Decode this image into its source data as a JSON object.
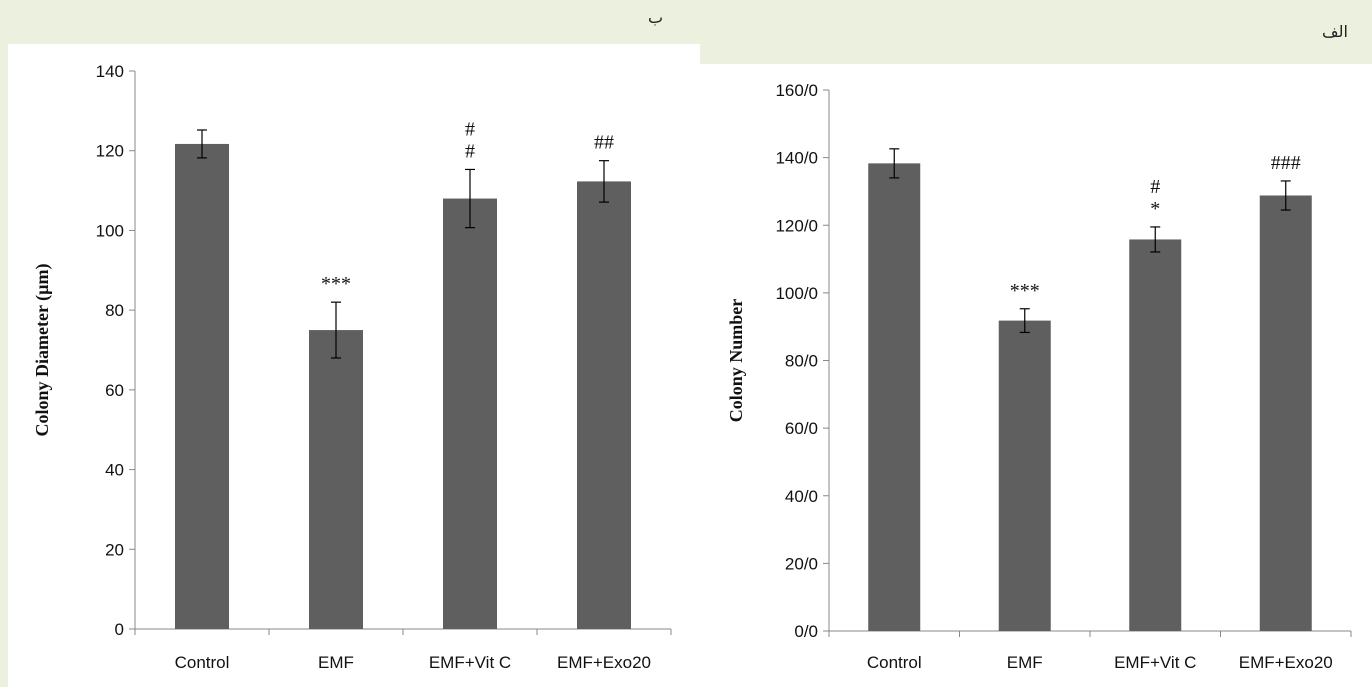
{
  "panels": {
    "left_letter": "ب",
    "right_letter": "الف"
  },
  "chart_data": [
    {
      "type": "bar",
      "categories": [
        "Control",
        "EMF",
        "EMF+Vit C",
        "EMF+Exo20"
      ],
      "values": [
        121.7,
        75.0,
        108.0,
        112.3
      ],
      "errors": [
        3.5,
        7.0,
        7.3,
        5.2
      ],
      "annotations": [
        [],
        [
          "***"
        ],
        [
          "#",
          "#"
        ],
        [
          "##"
        ]
      ],
      "ylabel": "Colony Diameter (µm)",
      "ylim": [
        0,
        140
      ],
      "yticks": [
        0,
        20,
        40,
        60,
        80,
        100,
        120,
        140
      ],
      "ytick_labels": [
        "0",
        "20",
        "40",
        "60",
        "80",
        "100",
        "120",
        "140"
      ],
      "bar_color": "#5f5f5f",
      "grid": false,
      "legend": "none"
    },
    {
      "type": "bar",
      "categories": [
        "Control",
        "EMF",
        "EMF+Vit C",
        "EMF+Exo20"
      ],
      "values": [
        138.3,
        91.8,
        115.8,
        128.8
      ],
      "errors": [
        4.3,
        3.5,
        3.7,
        4.3
      ],
      "annotations": [
        [],
        [
          "***"
        ],
        [
          "#",
          "*"
        ],
        [
          "###"
        ]
      ],
      "ylabel": "Colony Number",
      "ylim": [
        0,
        160
      ],
      "yticks": [
        0,
        20,
        40,
        60,
        80,
        100,
        120,
        140,
        160
      ],
      "ytick_labels": [
        "0/0",
        "20/0",
        "40/0",
        "60/0",
        "80/0",
        "100/0",
        "120/0",
        "140/0",
        "160/0"
      ],
      "bar_color": "#5f5f5f",
      "grid": false,
      "legend": "none"
    }
  ]
}
